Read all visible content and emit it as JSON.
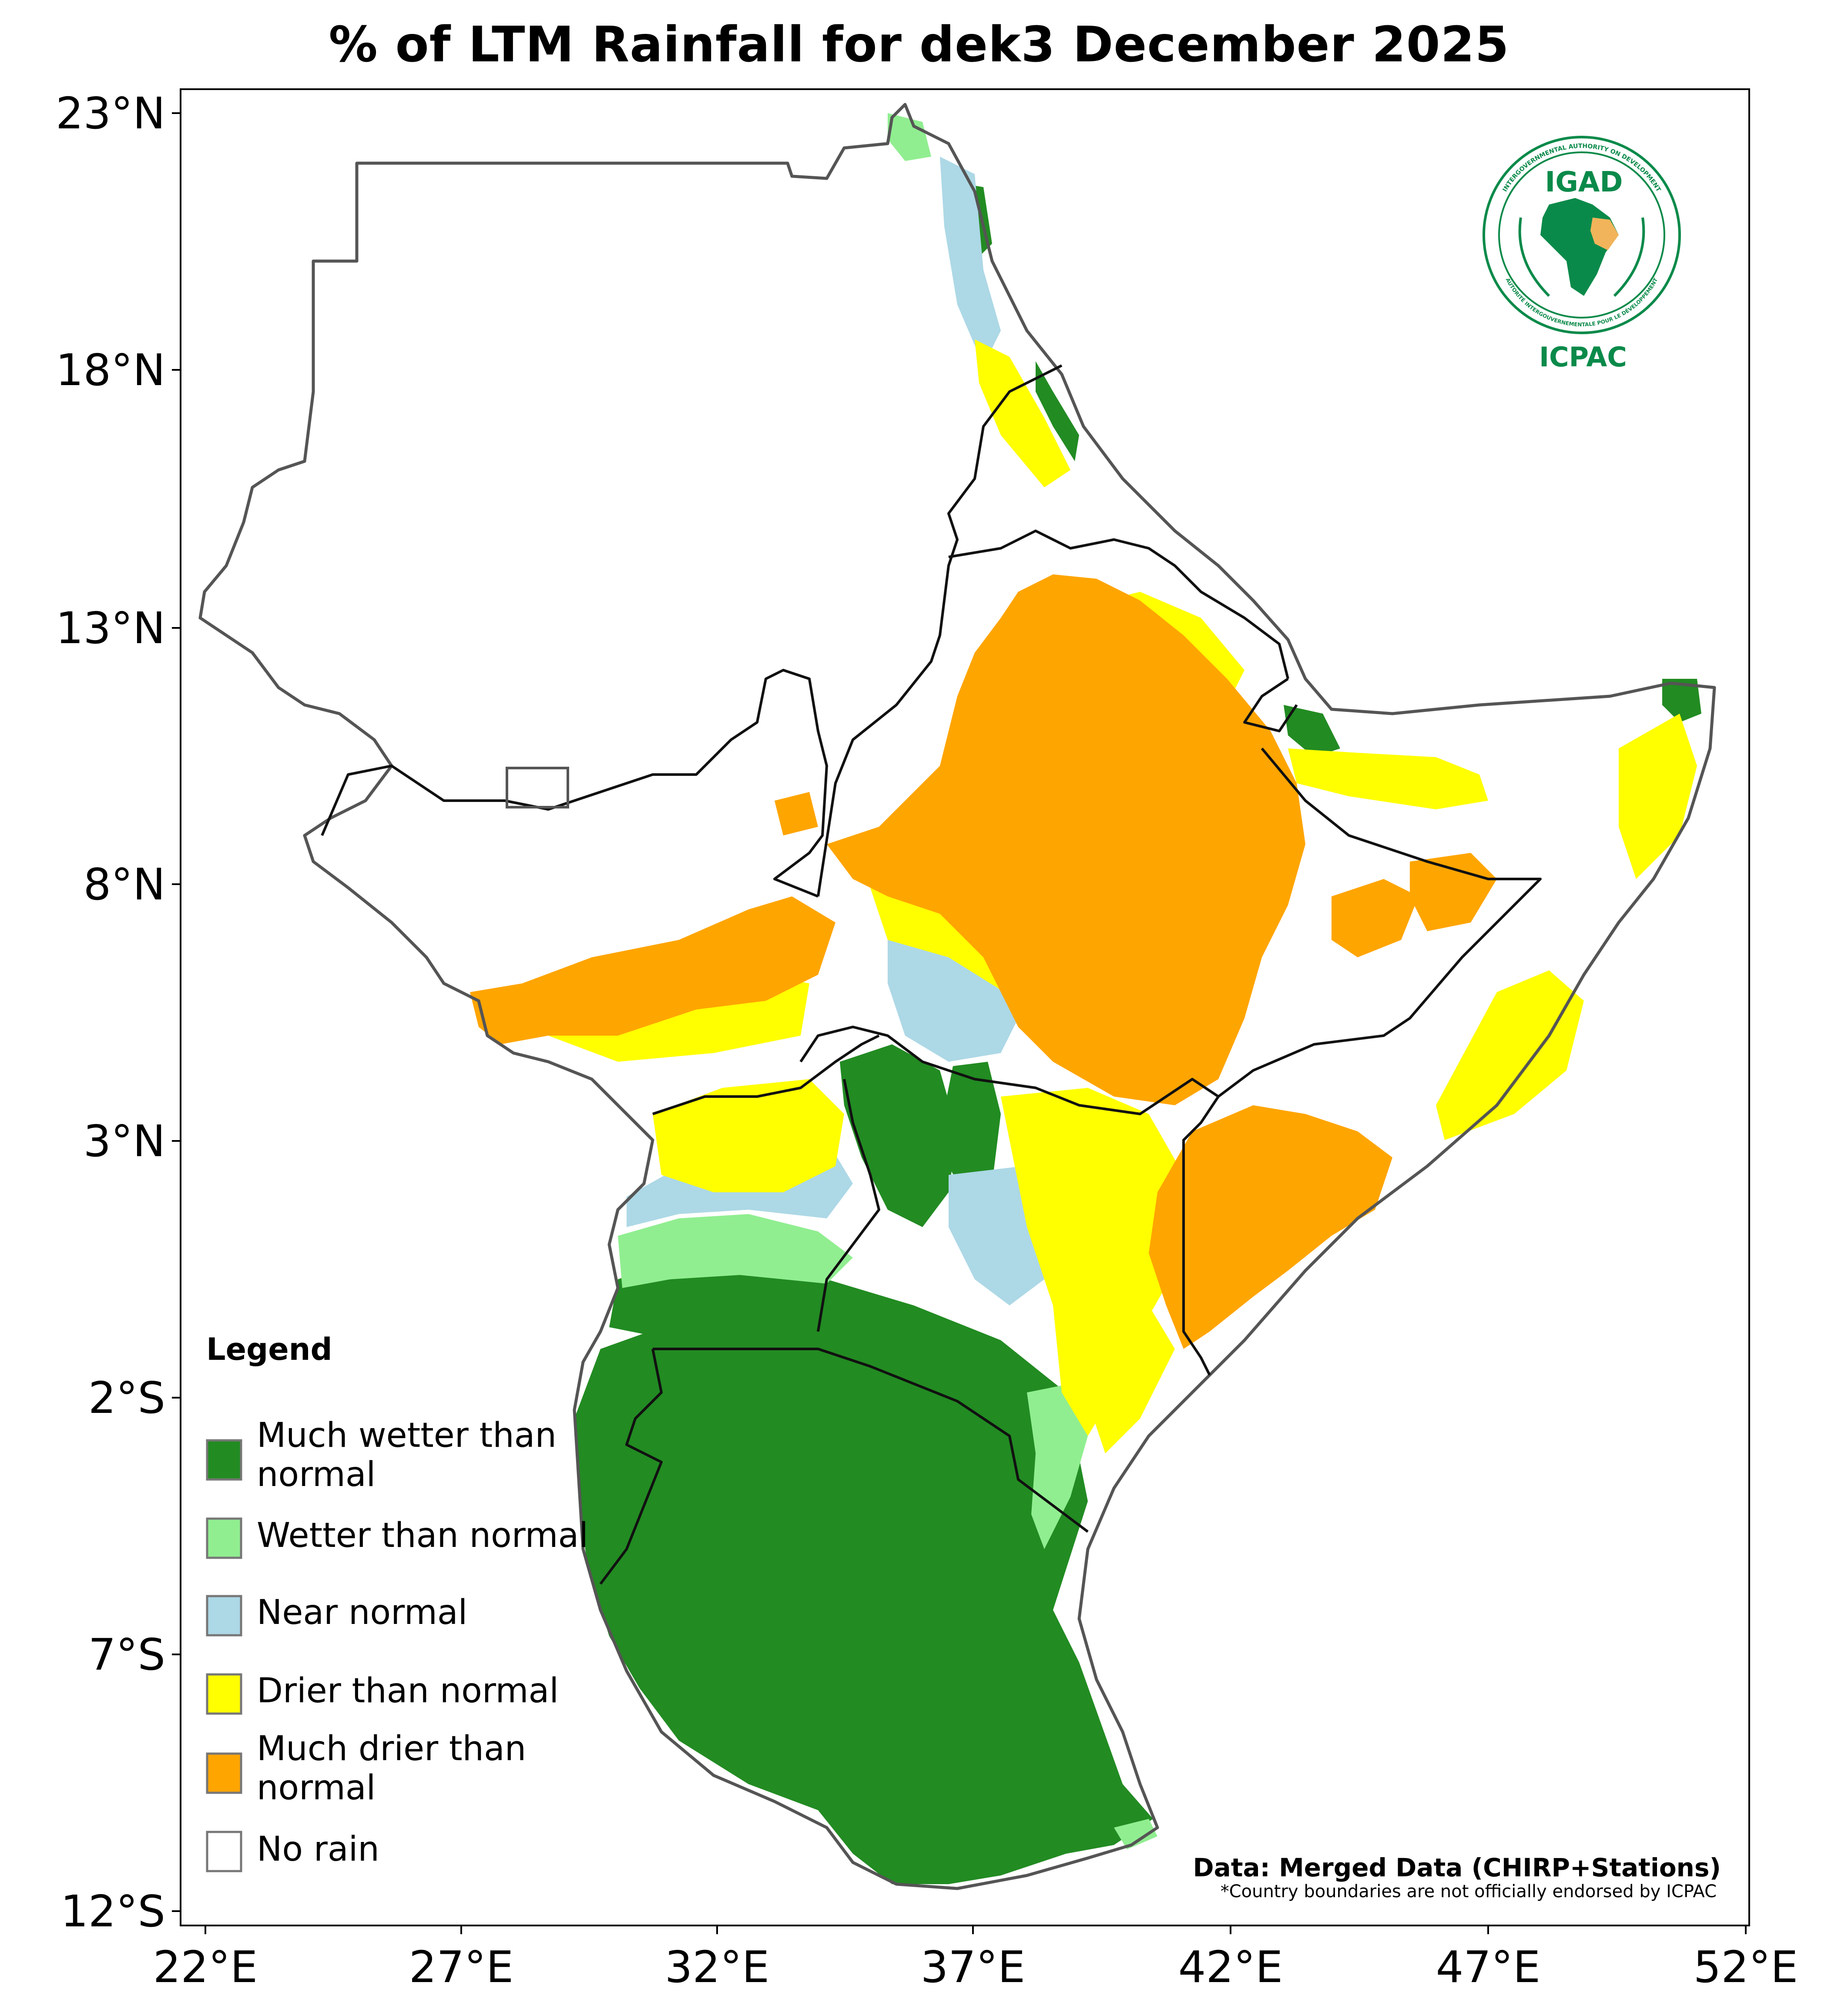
{
  "title": "% of LTM Rainfall for dek3 December 2025",
  "axes": {
    "lat_ticks": [
      "23°N",
      "18°N",
      "13°N",
      "8°N",
      "3°N",
      "2°S",
      "7°S",
      "12°S"
    ],
    "lon_ticks": [
      "22°E",
      "27°E",
      "32°E",
      "37°E",
      "42°E",
      "47°E",
      "52°E"
    ]
  },
  "legend": {
    "title": "Legend",
    "items": [
      {
        "line1": "Much wetter than",
        "line2": "normal",
        "color": "#228b22"
      },
      {
        "line1": "Wetter than normal",
        "line2": "",
        "color": "#90ee90"
      },
      {
        "line1": "Near normal",
        "line2": "",
        "color": "#add8e6"
      },
      {
        "line1": "Drier than normal",
        "line2": "",
        "color": "#ffff00"
      },
      {
        "line1": "Much drier than",
        "line2": "normal",
        "color": "#ffa500"
      },
      {
        "line1": "No rain",
        "line2": "",
        "color": "#ffffff"
      }
    ]
  },
  "logo": {
    "top": "IGAD",
    "bottom": "ICPAC",
    "ring_top": "INTERGOVERNMENTAL AUTHORITY ON DEVELOPMENT",
    "ring_bottom": "AUTORITÉ INTERGOUVERNEMENTALE POUR LE DÉVELOPPEMENT"
  },
  "credits": {
    "line1": "Data: Merged Data (CHIRP+Stations)",
    "line2": "*Country boundaries are not officially endorsed by ICPAC"
  }
}
